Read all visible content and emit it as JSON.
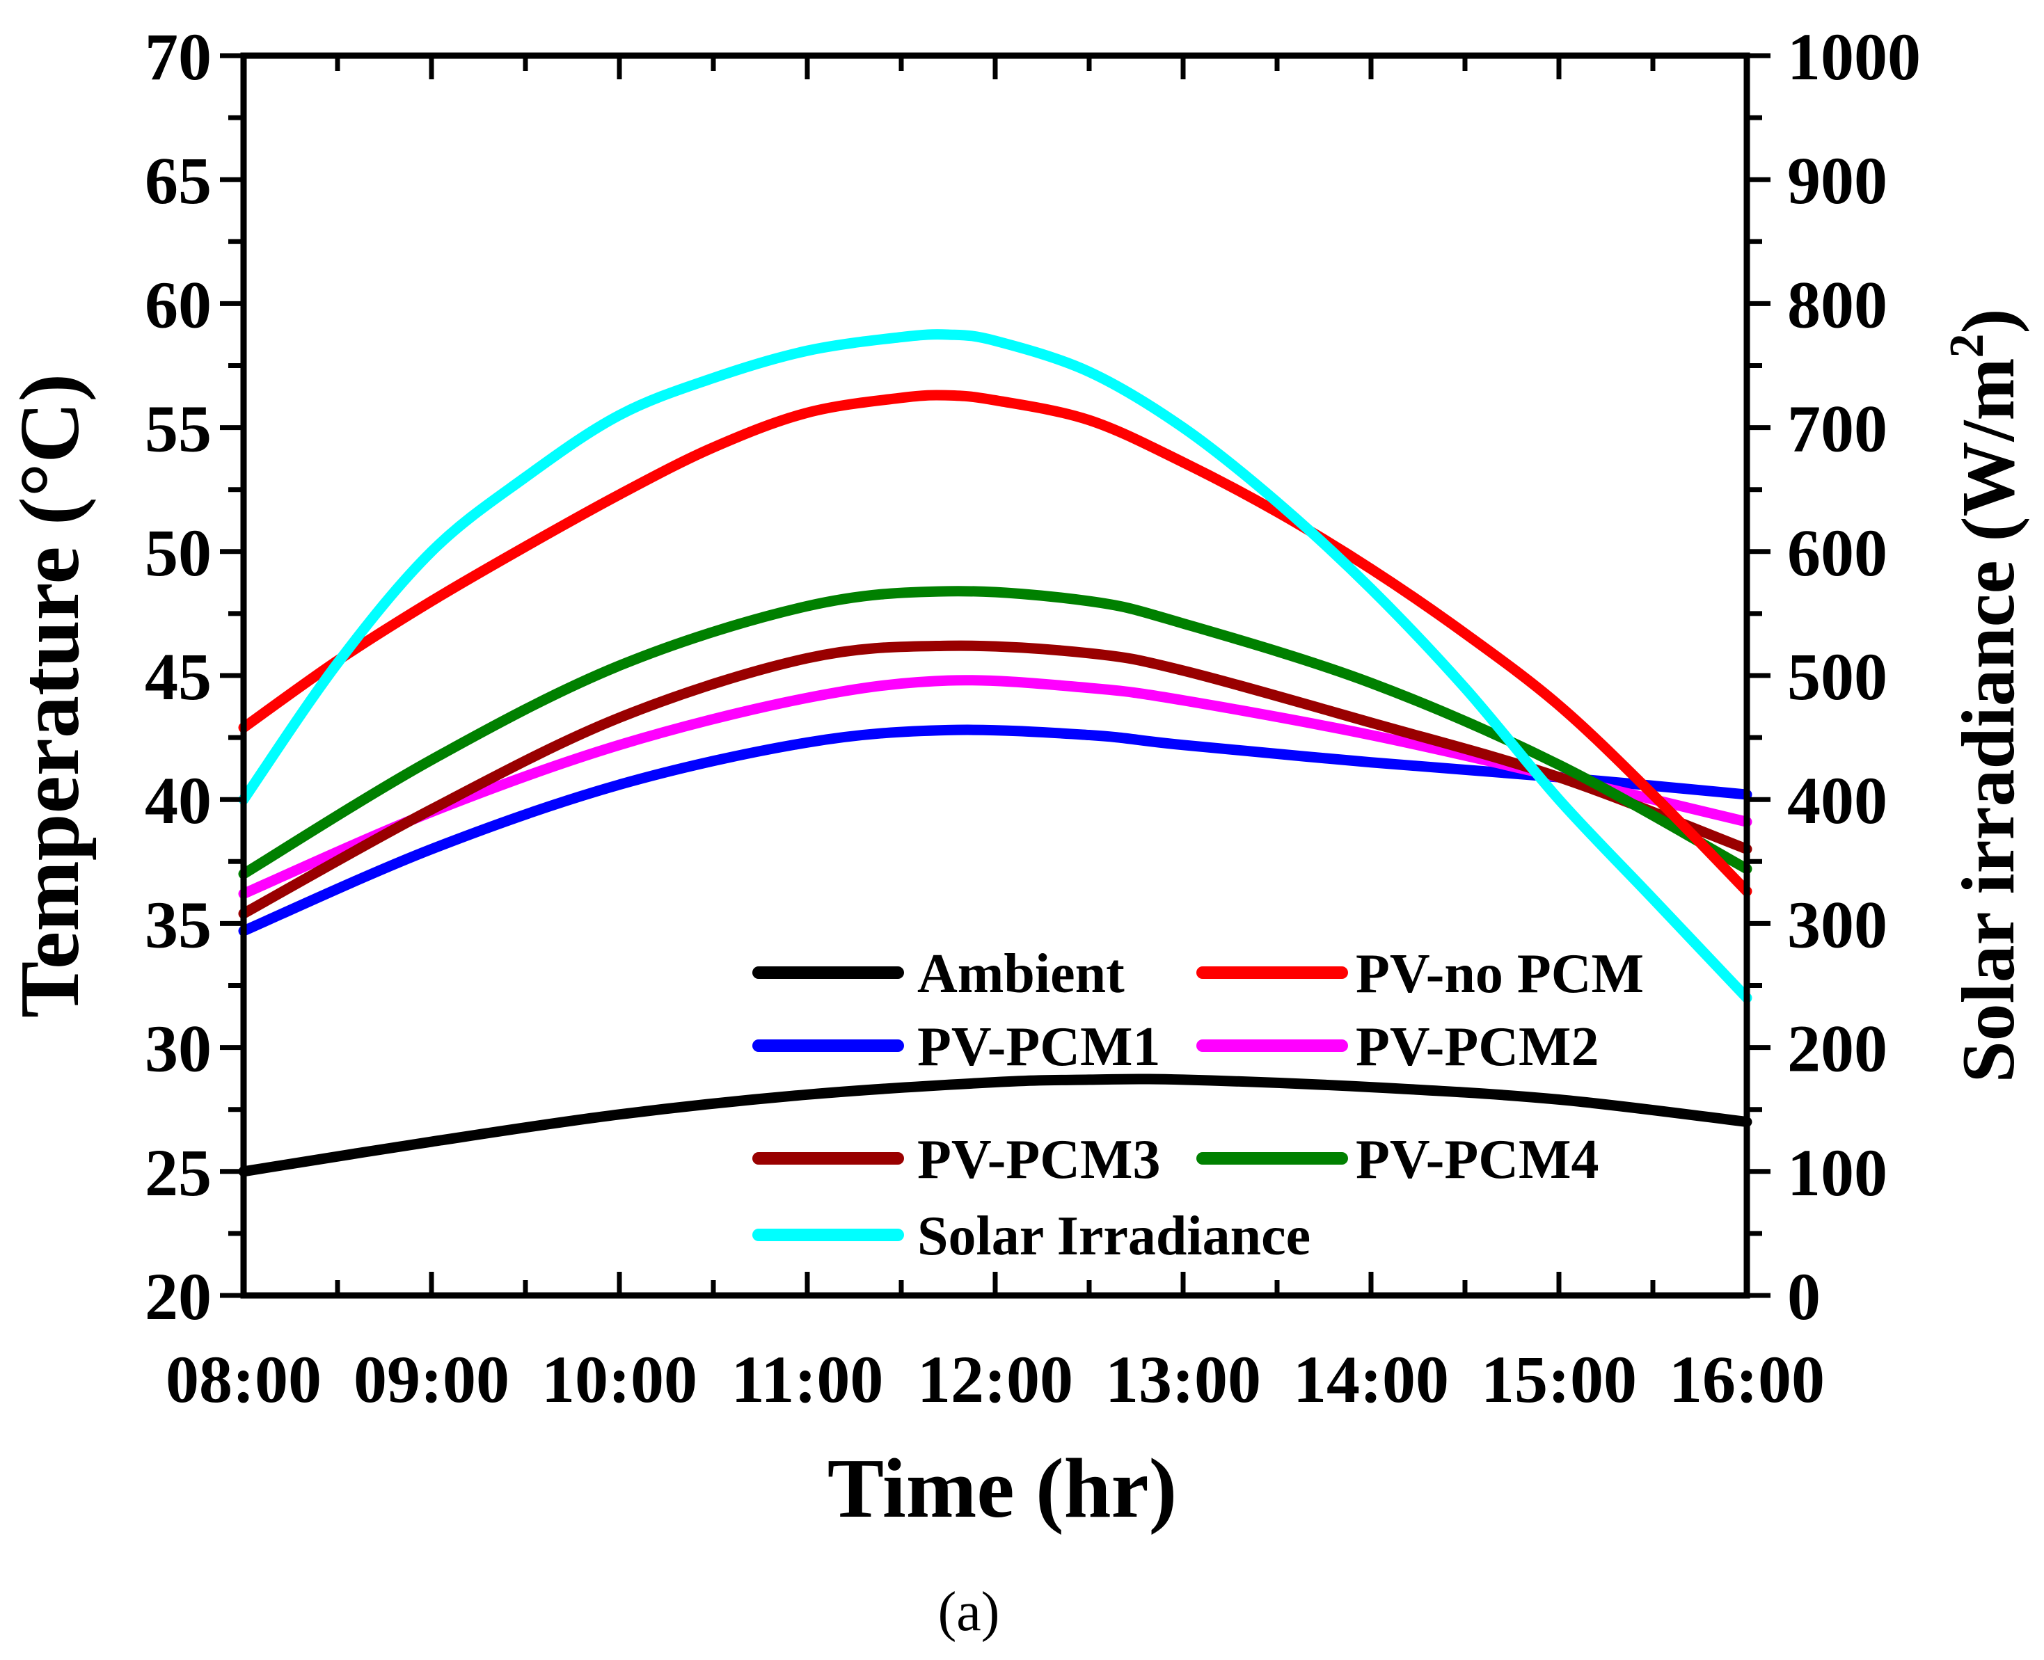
{
  "chart_data": {
    "type": "line",
    "xlabel": "Time (hr)",
    "ylabel_left": "Temperature (°C)",
    "ylabel_right": "Solar irradiance (W/m",
    "ylabel_right_sup": "2",
    "ylabel_right_close": ")",
    "caption": "(a)",
    "x_ticks": [
      "08:00",
      "09:00",
      "10:00",
      "11:00",
      "12:00",
      "13:00",
      "14:00",
      "15:00",
      "16:00"
    ],
    "xlim": [
      8,
      16
    ],
    "ylim_left": [
      20,
      70
    ],
    "ylim_right": [
      0,
      1000
    ],
    "left_ticks": [
      20,
      25,
      30,
      35,
      40,
      45,
      50,
      55,
      60,
      65,
      70
    ],
    "right_ticks": [
      0,
      100,
      200,
      300,
      400,
      500,
      600,
      700,
      800,
      900,
      1000
    ],
    "x": [
      8,
      9,
      10,
      11,
      11.75,
      12.5,
      13,
      14,
      15,
      16
    ],
    "series": [
      {
        "name": "Ambient",
        "color": "#000000",
        "axis": "left",
        "x": [
          8,
          9,
          10,
          11,
          12,
          12.5,
          13,
          14,
          15,
          16
        ],
        "values": [
          25.0,
          26.2,
          27.3,
          28.1,
          28.6,
          28.7,
          28.7,
          28.4,
          27.9,
          27.0
        ]
      },
      {
        "name": "PV-no PCM",
        "color": "#ff0000",
        "axis": "left",
        "x": [
          8,
          8.5,
          9,
          9.5,
          10,
          10.5,
          11,
          11.5,
          11.75,
          12,
          12.5,
          13,
          13.5,
          14,
          14.5,
          15,
          15.5,
          16
        ],
        "values": [
          42.9,
          45.6,
          48.0,
          50.2,
          52.3,
          54.2,
          55.6,
          56.2,
          56.3,
          56.1,
          55.3,
          53.6,
          51.6,
          49.3,
          46.7,
          43.8,
          40.2,
          36.3
        ]
      },
      {
        "name": "PV-PCM1",
        "color": "#0000ff",
        "axis": "left",
        "x": [
          8,
          9,
          10,
          11,
          11.75,
          12.5,
          13,
          14,
          15,
          16
        ],
        "values": [
          34.7,
          38.0,
          40.6,
          42.3,
          42.8,
          42.6,
          42.2,
          41.5,
          40.9,
          40.2
        ]
      },
      {
        "name": "PV-PCM2",
        "color": "#ff00ff",
        "axis": "left",
        "x": [
          8,
          9,
          10,
          11,
          11.75,
          12.5,
          13,
          14,
          15,
          16
        ],
        "values": [
          36.2,
          39.5,
          42.2,
          44.1,
          44.8,
          44.5,
          44.0,
          42.6,
          40.9,
          39.1
        ]
      },
      {
        "name": "PV-PCM3",
        "color": "#990000",
        "axis": "left",
        "x": [
          8,
          9,
          10,
          11,
          11.75,
          12.5,
          13,
          14,
          15,
          16
        ],
        "values": [
          35.4,
          39.6,
          43.3,
          45.7,
          46.2,
          45.9,
          45.2,
          43.1,
          40.9,
          38.0
        ]
      },
      {
        "name": "PV-PCM4",
        "color": "#008000",
        "axis": "left",
        "x": [
          8,
          9,
          10,
          11,
          11.75,
          12.5,
          13,
          14,
          15,
          16
        ],
        "values": [
          37.0,
          41.6,
          45.4,
          47.8,
          48.4,
          48.0,
          47.1,
          44.7,
          41.4,
          37.2
        ]
      },
      {
        "name": "Solar Irradiance",
        "color": "#00ffff",
        "axis": "right",
        "x": [
          8,
          8.5,
          9,
          9.5,
          10,
          10.5,
          11,
          11.5,
          11.75,
          12,
          12.5,
          13,
          13.5,
          14,
          14.5,
          15,
          15.5,
          16
        ],
        "values": [
          400,
          510,
          600,
          660,
          710,
          740,
          762,
          773,
          775,
          770,
          745,
          700,
          640,
          570,
          490,
          400,
          320,
          240
        ]
      }
    ],
    "legend": {
      "placement": "bottom-center",
      "rows": [
        [
          "Ambient",
          "PV-no PCM"
        ],
        [
          "PV-PCM1",
          "PV-PCM2"
        ],
        [
          "PV-PCM3",
          "PV-PCM4"
        ],
        [
          "Solar Irradiance"
        ]
      ]
    },
    "grid": false
  }
}
